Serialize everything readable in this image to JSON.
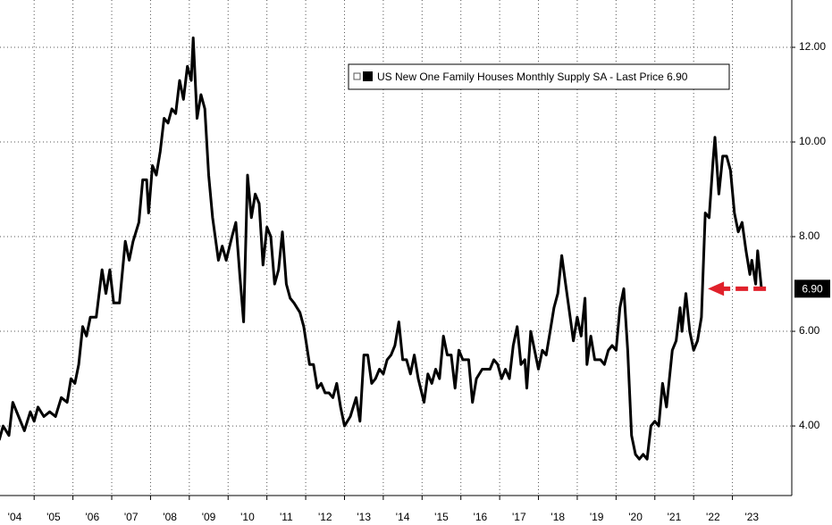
{
  "chart_data": {
    "type": "line",
    "legend": "US New One Family Houses Monthly Supply SA - Last Price 6.90",
    "x": [
      2004.1,
      2004.2,
      2004.35,
      2004.45,
      2004.6,
      2004.75,
      2004.9,
      2005.0,
      2005.1,
      2005.25,
      2005.4,
      2005.55,
      2005.7,
      2005.85,
      2005.95,
      2006.05,
      2006.15,
      2006.25,
      2006.35,
      2006.45,
      2006.6,
      2006.75,
      2006.85,
      2006.95,
      2007.05,
      2007.2,
      2007.35,
      2007.45,
      2007.55,
      2007.7,
      2007.8,
      2007.9,
      2007.95,
      2008.05,
      2008.15,
      2008.25,
      2008.35,
      2008.45,
      2008.55,
      2008.65,
      2008.75,
      2008.85,
      2008.95,
      2009.05,
      2009.1,
      2009.2,
      2009.3,
      2009.4,
      2009.5,
      2009.6,
      2009.75,
      2009.85,
      2009.95,
      2010.1,
      2010.2,
      2010.3,
      2010.4,
      2010.5,
      2010.6,
      2010.7,
      2010.8,
      2010.9,
      2011.0,
      2011.1,
      2011.2,
      2011.3,
      2011.4,
      2011.5,
      2011.6,
      2011.7,
      2011.85,
      2011.95,
      2012.1,
      2012.2,
      2012.3,
      2012.4,
      2012.5,
      2012.6,
      2012.7,
      2012.8,
      2012.9,
      2013.0,
      2013.15,
      2013.3,
      2013.4,
      2013.5,
      2013.6,
      2013.7,
      2013.8,
      2013.9,
      2014.0,
      2014.1,
      2014.2,
      2014.3,
      2014.4,
      2014.5,
      2014.6,
      2014.7,
      2014.8,
      2014.9,
      2015.05,
      2015.15,
      2015.25,
      2015.35,
      2015.45,
      2015.55,
      2015.65,
      2015.75,
      2015.85,
      2015.95,
      2016.05,
      2016.2,
      2016.3,
      2016.4,
      2016.55,
      2016.75,
      2016.85,
      2016.95,
      2017.05,
      2017.15,
      2017.25,
      2017.35,
      2017.45,
      2017.55,
      2017.65,
      2017.7,
      2017.8,
      2017.9,
      2018.0,
      2018.1,
      2018.2,
      2018.3,
      2018.4,
      2018.5,
      2018.6,
      2018.7,
      2018.8,
      2018.9,
      2019.0,
      2019.1,
      2019.2,
      2019.25,
      2019.35,
      2019.45,
      2019.6,
      2019.7,
      2019.8,
      2019.9,
      2020.0,
      2020.1,
      2020.2,
      2020.3,
      2020.4,
      2020.5,
      2020.6,
      2020.7,
      2020.8,
      2020.9,
      2021.0,
      2021.1,
      2021.2,
      2021.3,
      2021.45,
      2021.55,
      2021.65,
      2021.7,
      2021.8,
      2021.9,
      2022.0,
      2022.1,
      2022.2,
      2022.3,
      2022.4,
      2022.5,
      2022.55,
      2022.65,
      2022.75,
      2022.85,
      2022.95,
      2023.05,
      2023.15,
      2023.25,
      2023.35,
      2023.45,
      2023.5,
      2023.6,
      2023.65,
      2023.75
    ],
    "series": [
      {
        "name": "US New One Family Houses Monthly Supply SA",
        "color": "#000000",
        "values": [
          3.7,
          4.0,
          3.8,
          4.5,
          4.2,
          3.9,
          4.3,
          4.1,
          4.4,
          4.2,
          4.3,
          4.2,
          4.6,
          4.5,
          5.0,
          4.9,
          5.3,
          6.1,
          5.9,
          6.3,
          6.3,
          7.3,
          6.8,
          7.3,
          6.6,
          6.6,
          7.9,
          7.5,
          7.9,
          8.3,
          9.2,
          9.2,
          8.5,
          9.5,
          9.3,
          9.8,
          10.5,
          10.4,
          10.7,
          10.6,
          11.3,
          10.9,
          11.6,
          11.3,
          12.2,
          10.5,
          11.0,
          10.7,
          9.3,
          8.4,
          7.5,
          7.8,
          7.5,
          8.0,
          8.3,
          7.2,
          6.2,
          9.3,
          8.4,
          8.9,
          8.7,
          7.4,
          8.2,
          8.0,
          7.0,
          7.3,
          8.1,
          7.0,
          6.7,
          6.6,
          6.4,
          6.1,
          5.3,
          5.3,
          4.8,
          4.9,
          4.7,
          4.7,
          4.6,
          4.9,
          4.4,
          4.0,
          4.2,
          4.6,
          4.1,
          5.5,
          5.5,
          4.9,
          5.0,
          5.2,
          5.1,
          5.4,
          5.5,
          5.7,
          6.2,
          5.4,
          5.4,
          5.1,
          5.5,
          5.0,
          4.5,
          5.1,
          4.9,
          5.2,
          5.0,
          5.9,
          5.5,
          5.5,
          4.8,
          5.6,
          5.4,
          5.4,
          4.5,
          5.0,
          5.2,
          5.2,
          5.4,
          5.3,
          5.0,
          5.2,
          5.0,
          5.7,
          6.1,
          5.3,
          5.4,
          4.8,
          6.0,
          5.6,
          5.2,
          5.6,
          5.5,
          6.0,
          6.5,
          6.8,
          7.6,
          7.0,
          6.4,
          5.8,
          6.3,
          5.9,
          6.7,
          5.3,
          5.9,
          5.4,
          5.4,
          5.3,
          5.6,
          5.7,
          5.6,
          6.5,
          6.9,
          5.6,
          3.8,
          3.4,
          3.3,
          3.4,
          3.3,
          4.0,
          4.1,
          4.0,
          4.9,
          4.4,
          5.6,
          5.8,
          6.5,
          6.0,
          6.8,
          6.0,
          5.6,
          5.8,
          6.3,
          8.5,
          8.4,
          9.6,
          10.1,
          8.9,
          9.7,
          9.7,
          9.4,
          8.5,
          8.1,
          8.3,
          7.7,
          7.2,
          7.5,
          7.0,
          7.7,
          6.9
        ]
      }
    ],
    "annotations": [
      {
        "text": "6.90",
        "y": 6.9
      }
    ],
    "xlim": [
      2004.12,
      2024.53
    ],
    "xticks": [
      {
        "value": 2004,
        "label": "'04"
      },
      {
        "value": 2005,
        "label": "'05"
      },
      {
        "value": 2006,
        "label": "'06"
      },
      {
        "value": 2007,
        "label": "'07"
      },
      {
        "value": 2008,
        "label": "'08"
      },
      {
        "value": 2009,
        "label": "'09"
      },
      {
        "value": 2010,
        "label": "'10"
      },
      {
        "value": 2011,
        "label": "'11"
      },
      {
        "value": 2012,
        "label": "'12"
      },
      {
        "value": 2013,
        "label": "'13"
      },
      {
        "value": 2014,
        "label": "'14"
      },
      {
        "value": 2015,
        "label": "'15"
      },
      {
        "value": 2016,
        "label": "'16"
      },
      {
        "value": 2017,
        "label": "'17"
      },
      {
        "value": 2018,
        "label": "'18"
      },
      {
        "value": 2019,
        "label": "'19"
      },
      {
        "value": 2020,
        "label": "'20"
      },
      {
        "value": 2021,
        "label": "'21"
      },
      {
        "value": 2022,
        "label": "'22"
      },
      {
        "value": 2023,
        "label": "'23"
      }
    ],
    "ylim": [
      2.53,
      13
    ],
    "yticks": [
      {
        "value": 4,
        "label": "4.00"
      },
      {
        "value": 6,
        "label": "6.00"
      },
      {
        "value": 8,
        "label": "8.00"
      },
      {
        "value": 10,
        "label": "10.00"
      },
      {
        "value": 12,
        "label": "12.00"
      }
    ],
    "grid": true
  }
}
